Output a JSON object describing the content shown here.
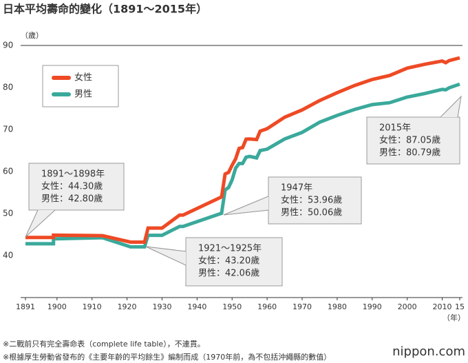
{
  "chart_data": {
    "type": "line",
    "title": "日本平均壽命的變化（1891～2015年）",
    "y_unit": "（歲）",
    "x_unit": "（年）",
    "x": [
      1891,
      1899,
      1899,
      1913,
      1921,
      1925,
      1926,
      1930,
      1935,
      1936,
      1947,
      1948,
      1949,
      1950,
      1951,
      1952,
      1953,
      1954,
      1955,
      1957,
      1958,
      1960,
      1965,
      1970,
      1975,
      1980,
      1985,
      1990,
      1995,
      2000,
      2005,
      2010,
      2011,
      2012,
      2015
    ],
    "series": [
      {
        "name": "女性",
        "color": "#ee4a25",
        "values": [
          44.3,
          44.3,
          44.85,
          44.73,
          43.2,
          43.2,
          46.54,
          46.54,
          49.63,
          49.63,
          53.96,
          59.4,
          59.8,
          61.5,
          63.0,
          65.5,
          65.7,
          67.7,
          67.75,
          67.6,
          69.6,
          70.19,
          72.92,
          74.66,
          76.89,
          78.76,
          80.48,
          81.9,
          82.85,
          84.6,
          85.52,
          86.3,
          85.9,
          86.41,
          87.05
        ]
      },
      {
        "name": "男性",
        "color": "#3aa99b",
        "values": [
          42.8,
          42.8,
          43.97,
          44.25,
          42.06,
          42.06,
          44.82,
          44.82,
          46.92,
          46.92,
          50.06,
          55.6,
          56.2,
          58.0,
          60.8,
          61.9,
          61.9,
          63.41,
          63.6,
          63.24,
          64.98,
          65.32,
          67.74,
          69.31,
          71.73,
          73.35,
          74.78,
          75.92,
          76.38,
          77.72,
          78.56,
          79.55,
          79.44,
          79.94,
          80.79
        ]
      }
    ],
    "xlim": [
      1891,
      2015
    ],
    "xticks": [
      1891,
      1900,
      1910,
      1920,
      1930,
      1940,
      1950,
      1960,
      1970,
      1980,
      1990,
      2000,
      2010,
      {
        "value": 2015,
        "label": "15"
      }
    ],
    "ylim": [
      30,
      90
    ],
    "yticks": [
      40,
      50,
      60,
      70,
      80,
      90
    ],
    "grid": false,
    "annotations": [
      {
        "title": "1891～1898年",
        "lines": [
          "女性：44.30歲",
          "男性：42.80歲"
        ]
      },
      {
        "title": "1947年",
        "lines": [
          "女性：53.96歲",
          "男性：50.06歲"
        ]
      },
      {
        "title": "1921～1925年",
        "lines": [
          "女性：43.20歲",
          "男性：42.06歲"
        ]
      },
      {
        "title": "2015年",
        "lines": [
          "女性：87.05歲",
          "男性：80.79歲"
        ]
      }
    ],
    "footnotes": [
      "※二戰前只有完全壽命表（complete life table），不連貫。",
      "※根據厚生勞動省發布的《主要年齡的平均餘生》編制而成（1970年前，為不包括沖繩縣的數值）"
    ],
    "source": "nippon.com"
  }
}
